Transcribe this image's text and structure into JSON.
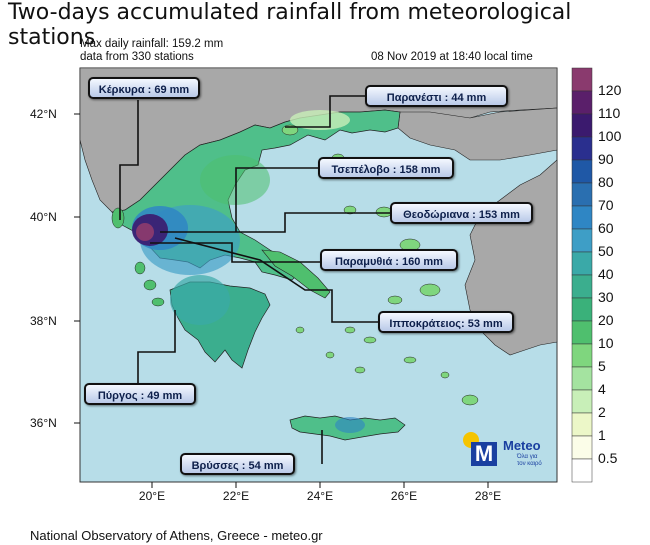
{
  "title": "Two-days accumulated rainfall from meteorological stations",
  "subtitle_left_1": "Max daily rainfall: 159.2 mm",
  "subtitle_left_2": "data from 330 stations",
  "subtitle_right": "08 Nov 2019 at 18:40 local time",
  "footer": "National Observatory of Athens, Greece - meteo.gr",
  "logo": {
    "name": "Meteo",
    "tagline_1": "Όλα για",
    "tagline_2": "τον καιρό",
    "accent": "#1a3fa0",
    "sun": "#f5c400"
  },
  "axes": {
    "lat_labels": [
      "42°N",
      "40°N",
      "38°N",
      "36°N"
    ],
    "lon_labels": [
      "20°E",
      "22°E",
      "24°E",
      "26°E",
      "28°E"
    ]
  },
  "stations": [
    {
      "label": "Κέρκυρα : 69 mm"
    },
    {
      "label": "Παρανέστι : 44 mm"
    },
    {
      "label": "Τσεπέλοβο : 158 mm"
    },
    {
      "label": "Θεοδώριανα : 153 mm"
    },
    {
      "label": "Παραμυθιά : 160 mm"
    },
    {
      "label": "Ιπποκράτειος: 53 mm"
    },
    {
      "label": "Πύργος : 49 mm"
    },
    {
      "label": "Βρύσσες : 54 mm"
    }
  ],
  "colorbar": {
    "levels": [
      "120",
      "110",
      "100",
      "90",
      "80",
      "70",
      "60",
      "50",
      "40",
      "30",
      "20",
      "10",
      "5",
      "4",
      "2",
      "1",
      "0.5"
    ],
    "colors": [
      "#8a3a6e",
      "#5a1f6a",
      "#3b1a6e",
      "#2a2f8e",
      "#1f58a6",
      "#2a6fb0",
      "#2f86c4",
      "#3e9ec6",
      "#3aa9a8",
      "#3bae8e",
      "#3ab17a",
      "#4fbf6e",
      "#7fd67e",
      "#a4e3a0",
      "#c8efb8",
      "#ecf7c8",
      "#fbfde8",
      "#ffffff"
    ]
  }
}
